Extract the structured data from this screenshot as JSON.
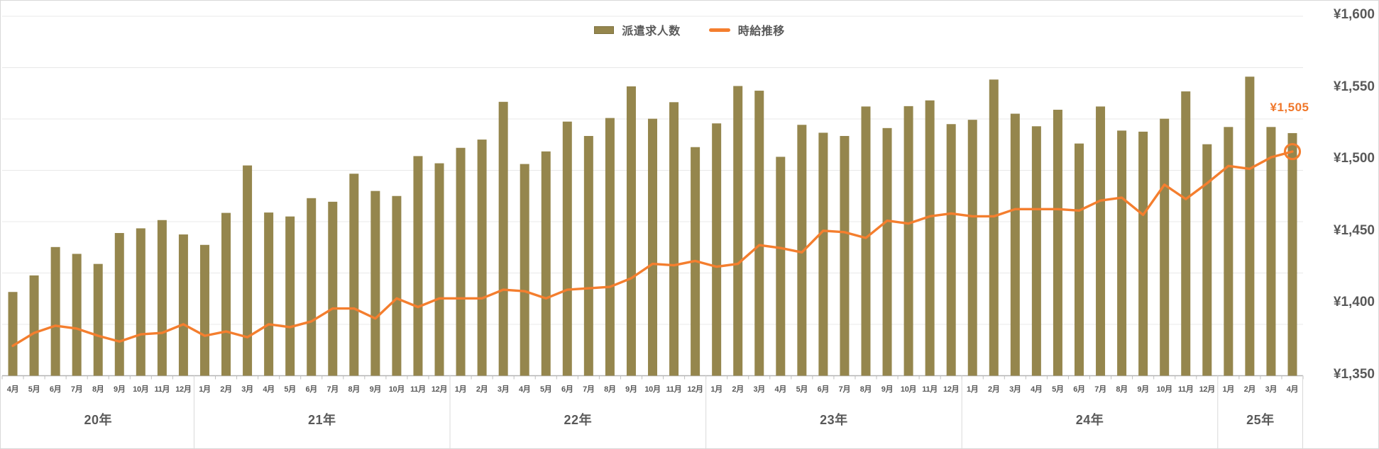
{
  "legend": {
    "bar_label": "派遣求人数",
    "line_label": "時給推移"
  },
  "y_axis": {
    "labels": [
      "¥1,600",
      "¥1,550",
      "¥1,500",
      "¥1,450",
      "¥1,400",
      "¥1,350"
    ],
    "values": [
      1600,
      1550,
      1500,
      1450,
      1400,
      1350
    ]
  },
  "chart_data": {
    "type": "combo",
    "title": "",
    "legend_position": "top-center",
    "grid": "horizontal, 8 lines (hidden left bar axis)",
    "right_axis": {
      "min": 1350,
      "max": 1600,
      "step": 50,
      "unit": "JPY"
    },
    "year_groups": [
      {
        "label": "20年",
        "months": [
          "4月",
          "5月",
          "6月",
          "7月",
          "8月",
          "9月",
          "10月",
          "11月",
          "12月"
        ]
      },
      {
        "label": "21年",
        "months": [
          "1月",
          "2月",
          "3月",
          "4月",
          "5月",
          "6月",
          "7月",
          "8月",
          "9月",
          "10月",
          "11月",
          "12月"
        ]
      },
      {
        "label": "22年",
        "months": [
          "1月",
          "2月",
          "3月",
          "4月",
          "5月",
          "6月",
          "7月",
          "8月",
          "9月",
          "10月",
          "11月",
          "12月"
        ]
      },
      {
        "label": "23年",
        "months": [
          "1月",
          "2月",
          "3月",
          "4月",
          "5月",
          "6月",
          "7月",
          "8月",
          "9月",
          "10月",
          "11月",
          "12月"
        ]
      },
      {
        "label": "24年",
        "months": [
          "1月",
          "2月",
          "3月",
          "4月",
          "5月",
          "6月",
          "7月",
          "8月",
          "9月",
          "10月",
          "11月",
          "12月"
        ]
      },
      {
        "label": "25年",
        "months": [
          "1月",
          "2月",
          "3月",
          "4月"
        ]
      }
    ],
    "series": [
      {
        "name": "派遣求人数",
        "type": "bar",
        "color": "#95864d",
        "axis": "hidden-left",
        "unit": "percent_of_plot_height",
        "values": [
          23.3,
          27.9,
          35.8,
          33.9,
          31.1,
          39.7,
          41.0,
          43.3,
          39.3,
          36.4,
          45.3,
          58.5,
          45.4,
          44.3,
          49.4,
          48.4,
          56.2,
          51.4,
          50.0,
          61.1,
          59.1,
          63.4,
          65.7,
          76.2,
          58.9,
          62.4,
          70.7,
          66.7,
          71.7,
          80.5,
          71.5,
          76.1,
          63.6,
          70.2,
          80.6,
          79.3,
          60.9,
          69.8,
          67.6,
          66.7,
          74.9,
          68.9,
          75.0,
          76.6,
          70.0,
          71.2,
          82.4,
          72.9,
          69.4,
          74.0,
          64.6,
          74.9,
          68.2,
          67.9,
          71.5,
          79.1,
          64.4,
          69.2,
          83.2,
          69.2,
          67.5
        ]
      },
      {
        "name": "時給推移",
        "type": "line",
        "color": "#f47e2e",
        "axis": "right",
        "unit": "JPY",
        "values": [
          1370,
          1379,
          1384,
          1382,
          1377,
          1373,
          1378,
          1379,
          1385,
          1377,
          1380,
          1376,
          1385,
          1383,
          1387,
          1396,
          1396,
          1389,
          1403,
          1397,
          1403,
          1403,
          1403,
          1409,
          1408,
          1403,
          1409,
          1410,
          1411,
          1417,
          1427,
          1426,
          1429,
          1425,
          1427,
          1440,
          1438,
          1435,
          1450,
          1449,
          1445,
          1457,
          1455,
          1460,
          1462,
          1460,
          1460,
          1465,
          1465,
          1465,
          1464,
          1471,
          1473,
          1461,
          1482,
          1472,
          1483,
          1495,
          1493,
          1501,
          1505
        ]
      }
    ],
    "final_label": "¥1,505",
    "final_value": 1505,
    "colors": {
      "bar": "#95864d",
      "line": "#f47e2e",
      "label_text": "#595959",
      "gridline": "#e8e8e8",
      "axis_line": "#b3b3b3",
      "tick": "#bfbfbf",
      "separator": "#d9d9d9",
      "final_label": "#f0772a"
    }
  }
}
